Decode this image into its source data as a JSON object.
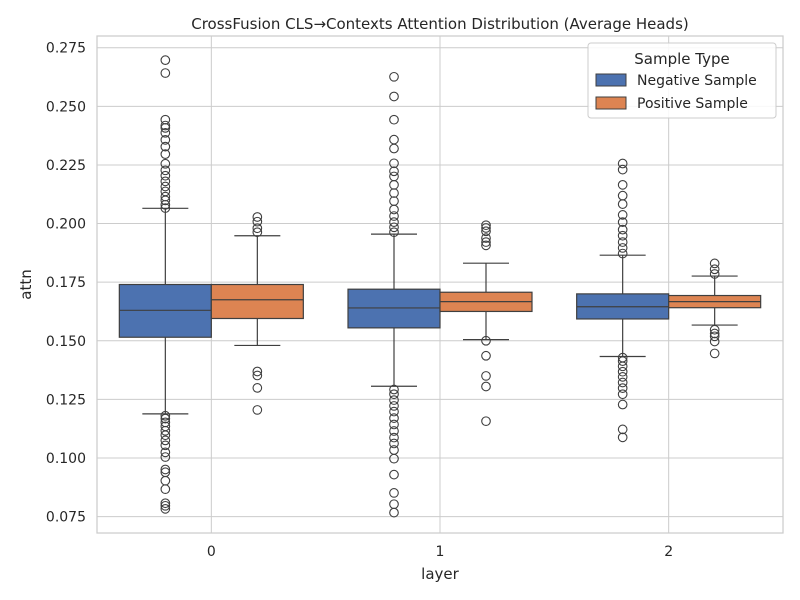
{
  "chart_data": {
    "type": "box",
    "title": "CrossFusion CLS→Contexts Attention Distribution (Average Heads)",
    "xlabel": "layer",
    "ylabel": "attn",
    "ylim": [
      0.068,
      0.28
    ],
    "yticks": [
      0.075,
      0.1,
      0.125,
      0.15,
      0.175,
      0.2,
      0.225,
      0.25,
      0.275
    ],
    "ytick_labels": [
      "0.075",
      "0.100",
      "0.125",
      "0.150",
      "0.175",
      "0.200",
      "0.225",
      "0.250",
      "0.275"
    ],
    "categories": [
      "0",
      "1",
      "2"
    ],
    "grid": true,
    "legend": {
      "title": "Sample Type",
      "placement": "top-right"
    },
    "series": [
      {
        "name": "Negative Sample",
        "color": "#4c72b0",
        "boxes": [
          {
            "whisker_low": 0.1188,
            "q1": 0.1515,
            "median": 0.163,
            "q3": 0.174,
            "whisker_high": 0.2065,
            "outliers": [
              0.0783,
              0.0796,
              0.0807,
              0.0867,
              0.0903,
              0.0939,
              0.0951,
              0.1004,
              0.1024,
              0.1054,
              0.1075,
              0.1097,
              0.1116,
              0.1135,
              0.1152,
              0.1168,
              0.118,
              0.2066,
              0.208,
              0.2099,
              0.2115,
              0.2137,
              0.2158,
              0.218,
              0.2204,
              0.2227,
              0.2255,
              0.2296,
              0.2328,
              0.2357,
              0.2387,
              0.2408,
              0.2418,
              0.2443,
              0.2642,
              0.2697
            ]
          },
          {
            "whisker_low": 0.1306,
            "q1": 0.1555,
            "median": 0.164,
            "q3": 0.172,
            "whisker_high": 0.1955,
            "outliers": [
              0.0767,
              0.0803,
              0.0851,
              0.0929,
              0.0997,
              0.1034,
              0.1062,
              0.1087,
              0.1115,
              0.1143,
              0.117,
              0.1198,
              0.1222,
              0.1247,
              0.1272,
              0.1292,
              0.1963,
              0.1984,
              0.2006,
              0.2032,
              0.206,
              0.2096,
              0.213,
              0.2165,
              0.2201,
              0.2223,
              0.2257,
              0.232,
              0.2358,
              0.2443,
              0.2542,
              0.2626
            ]
          },
          {
            "whisker_low": 0.1433,
            "q1": 0.1593,
            "median": 0.1645,
            "q3": 0.17,
            "whisker_high": 0.1865,
            "outliers": [
              0.1088,
              0.1122,
              0.1228,
              0.1272,
              0.1298,
              0.1322,
              0.1346,
              0.1368,
              0.1391,
              0.1413,
              0.1428,
              0.1872,
              0.1896,
              0.1921,
              0.1948,
              0.1974,
              0.2006,
              0.2037,
              0.2083,
              0.2119,
              0.2165,
              0.223,
              0.2256
            ]
          }
        ]
      },
      {
        "name": "Positive Sample",
        "color": "#dd8452",
        "boxes": [
          {
            "whisker_low": 0.148,
            "q1": 0.1595,
            "median": 0.1675,
            "q3": 0.174,
            "whisker_high": 0.1948,
            "outliers": [
              0.1205,
              0.1299,
              0.1352,
              0.1369,
              0.1963,
              0.198,
              0.2008,
              0.2028
            ]
          },
          {
            "whisker_low": 0.1505,
            "q1": 0.1625,
            "median": 0.1667,
            "q3": 0.1707,
            "whisker_high": 0.1831,
            "outliers": [
              0.1157,
              0.1305,
              0.135,
              0.1436,
              0.15,
              0.1907,
              0.1921,
              0.1938,
              0.1967,
              0.1981,
              0.1993
            ]
          },
          {
            "whisker_low": 0.1567,
            "q1": 0.1641,
            "median": 0.1667,
            "q3": 0.1693,
            "whisker_high": 0.1776,
            "outliers": [
              0.1446,
              0.1497,
              0.1519,
              0.1531,
              0.1547,
              0.1785,
              0.1805,
              0.183
            ]
          }
        ]
      }
    ]
  }
}
